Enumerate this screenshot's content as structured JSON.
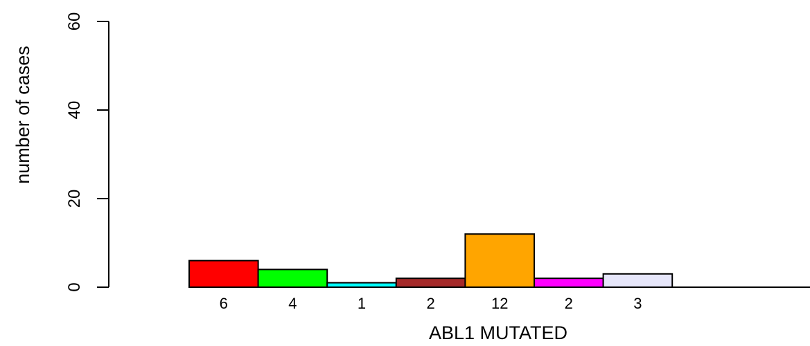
{
  "chart_data": {
    "type": "bar",
    "xlabel": "ABL1 MUTATED",
    "ylabel": "number of cases",
    "ylim": [
      0,
      60
    ],
    "yticks": [
      0,
      20,
      40,
      60
    ],
    "values": [
      6,
      4,
      1,
      2,
      12,
      2,
      3
    ],
    "value_labels": [
      "6",
      "4",
      "1",
      "2",
      "12",
      "2",
      "3"
    ],
    "colors": [
      "#ff0000",
      "#00ff00",
      "#00ffff",
      "#a52a2a",
      "#ffa500",
      "#ff00ff",
      "#e6e6fa"
    ]
  }
}
